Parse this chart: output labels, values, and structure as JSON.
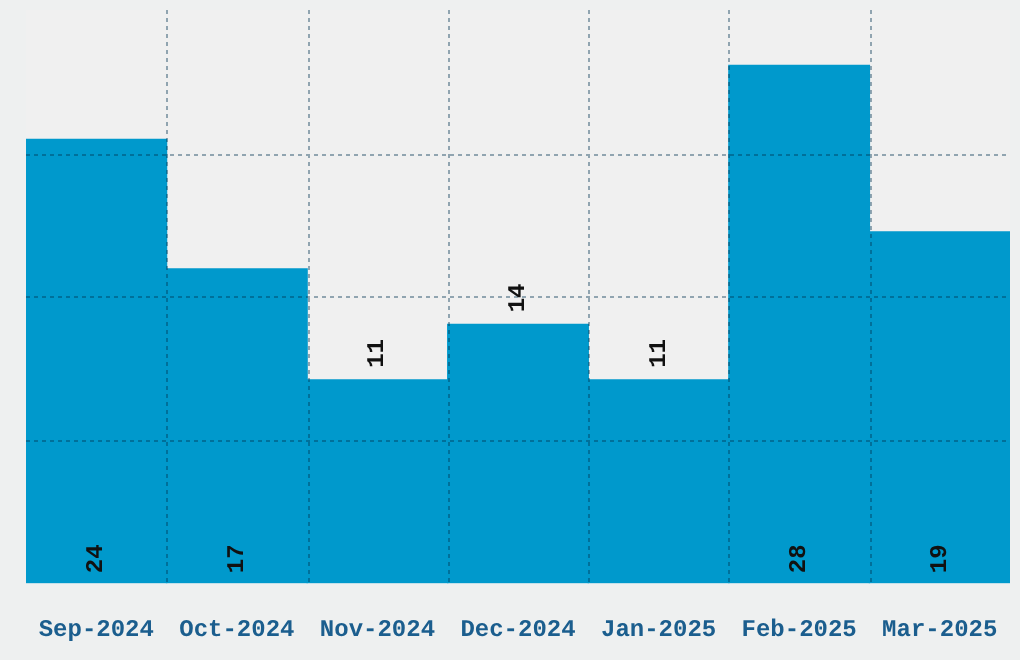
{
  "chart_data": {
    "type": "bar",
    "categories": [
      "Sep-2024",
      "Oct-2024",
      "Nov-2024",
      "Dec-2024",
      "Jan-2025",
      "Feb-2025",
      "Mar-2025"
    ],
    "values": [
      24,
      17,
      11,
      14,
      11,
      28,
      19
    ],
    "color": "#0099cc",
    "ylim": [
      0,
      31
    ],
    "grid": true,
    "tick_labels": "x",
    "data_labels": true,
    "legend": false
  }
}
